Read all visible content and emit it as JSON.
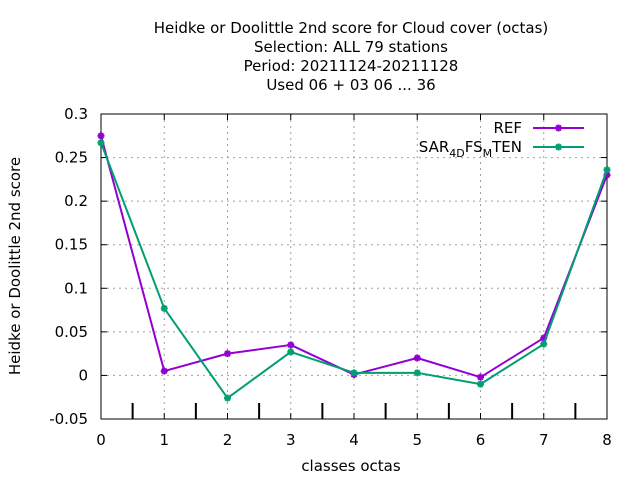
{
  "chart_data": {
    "type": "line",
    "title_lines": [
      "Heidke or Doolittle 2nd score  for Cloud cover (octas)",
      "Selection: ALL     79 stations",
      "Period: 20211124-20211128",
      "Used  06 + 03 06 ... 36"
    ],
    "xlabel": "classes octas",
    "ylabel": "Heidke or Doolittle 2nd score",
    "x": [
      0,
      1,
      2,
      3,
      4,
      5,
      6,
      7,
      8
    ],
    "xlim": [
      0,
      8
    ],
    "ylim": [
      -0.05,
      0.3
    ],
    "x_ticks": [
      "0",
      "1",
      "2",
      "3",
      "4",
      "5",
      "6",
      "7",
      "8"
    ],
    "y_ticks": [
      -0.05,
      0,
      0.05,
      0.1,
      0.15,
      0.2,
      0.25,
      0.3
    ],
    "y_tick_labels": [
      "-0.05",
      "0",
      "0.05",
      "0.1",
      "0.15",
      "0.2",
      "0.25",
      "0.3"
    ],
    "class_boundaries": [
      0.5,
      1.5,
      2.5,
      3.5,
      4.5,
      5.5,
      6.5,
      7.5
    ],
    "grid": true,
    "legend_position": "top-right",
    "series": [
      {
        "name": "REF",
        "color": "#9400d3",
        "values": [
          0.275,
          0.005,
          0.025,
          0.035,
          0.001,
          0.02,
          -0.002,
          0.043,
          0.23
        ]
      },
      {
        "name_parts": [
          "SAR",
          "4D",
          "FS",
          "M",
          "TEN"
        ],
        "color": "#009e73",
        "values": [
          0.267,
          0.077,
          -0.026,
          0.027,
          0.003,
          0.003,
          -0.01,
          0.036,
          0.236
        ]
      }
    ]
  }
}
